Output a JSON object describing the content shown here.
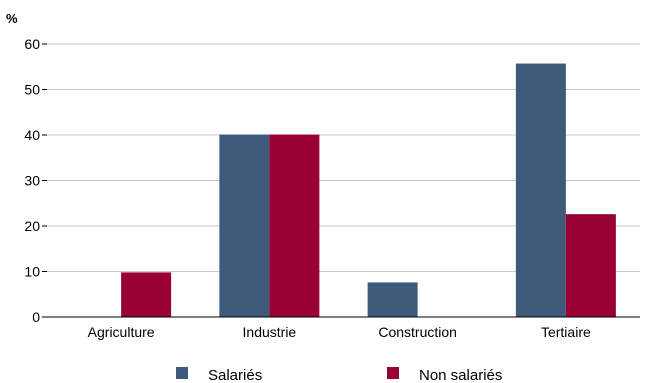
{
  "chart_data": {
    "type": "bar",
    "ylabel": "%",
    "ylim": [
      0,
      60
    ],
    "yticks": [
      0,
      10,
      20,
      30,
      40,
      50,
      60
    ],
    "grid": true,
    "legend_position": "bottom",
    "categories": [
      "Agriculture",
      "Industrie",
      "Construction",
      "Tertiaire"
    ],
    "series": [
      {
        "name": "Salariés",
        "color": "#3d5a7a",
        "values": [
          0,
          40.1,
          7.6,
          55.7
        ]
      },
      {
        "name": "Non salariés",
        "color": "#990033",
        "values": [
          9.8,
          40.1,
          0,
          22.6
        ]
      }
    ]
  }
}
